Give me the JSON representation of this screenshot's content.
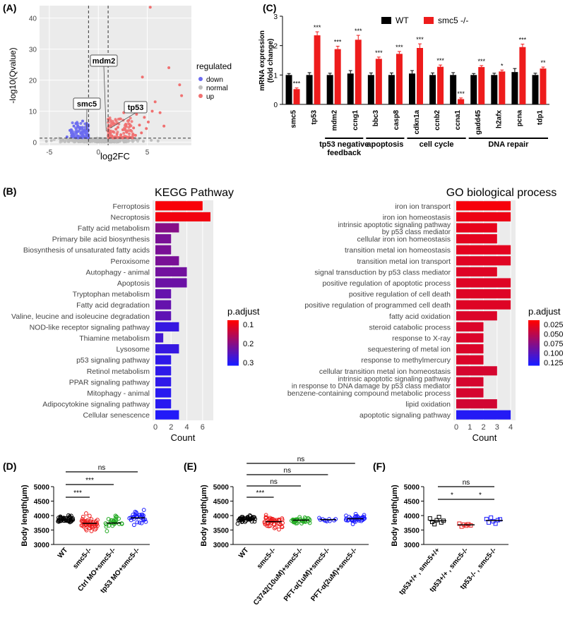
{
  "panels": {
    "A": "(A)",
    "B": "(B)",
    "C": "(C)",
    "D": "(D)",
    "E": "(E)",
    "F": "(F)"
  },
  "colors": {
    "up": "#f07070",
    "down": "#6b6bf0",
    "normal": "#bdbdbd",
    "wt": "#000000",
    "smc5": "#ee1c1c",
    "ptop": "#ff0000",
    "pbottom": "#1b1bff"
  },
  "chart_data": [
    {
      "id": "A",
      "type": "scatter",
      "xlabel": "log2FC",
      "ylabel": "-log10(Qvalue)",
      "xticks": [
        -5,
        0,
        5
      ],
      "yticks": [
        0,
        10,
        20,
        30,
        40
      ],
      "xlim": [
        -6,
        9.5
      ],
      "ylim": [
        -1,
        44
      ],
      "thresholds": {
        "x": [
          -1,
          1
        ],
        "y": 1.3
      },
      "legend": {
        "title": "regulated",
        "items": [
          "down",
          "normal",
          "up"
        ],
        "position": "right"
      },
      "labels": [
        {
          "name": "mdm2",
          "x": 0.8,
          "y": 3.5
        },
        {
          "name": "smc5",
          "x": -1.2,
          "y": 4
        },
        {
          "name": "tp53",
          "x": 1.2,
          "y": 4.5
        }
      ],
      "up_points": [
        [
          5.3,
          43.5
        ],
        [
          7.2,
          24
        ],
        [
          4.5,
          21
        ],
        [
          8.3,
          18.5
        ],
        [
          8.5,
          15
        ],
        [
          5.8,
          13
        ],
        [
          3.4,
          11
        ],
        [
          5.5,
          10
        ],
        [
          2.6,
          9.5
        ],
        [
          6.3,
          9.5
        ],
        [
          3.9,
          9
        ],
        [
          4.7,
          8
        ],
        [
          2.2,
          7.5
        ],
        [
          3.1,
          7
        ],
        [
          5.1,
          6.5
        ],
        [
          1.6,
          6
        ],
        [
          2.8,
          5.8
        ],
        [
          4.2,
          5.5
        ],
        [
          6.7,
          5.2
        ],
        [
          1.3,
          5
        ],
        [
          2.0,
          4.8
        ],
        [
          3.6,
          4.6
        ],
        [
          4.9,
          4.4
        ],
        [
          1.8,
          4.2
        ],
        [
          2.5,
          4
        ],
        [
          3.3,
          3.8
        ],
        [
          1.1,
          3.6
        ],
        [
          1.5,
          3.4
        ],
        [
          2.9,
          3.2
        ],
        [
          4.4,
          3
        ],
        [
          1.2,
          2.8
        ],
        [
          1.9,
          2.6
        ],
        [
          2.3,
          2.4
        ],
        [
          3.8,
          2.2
        ],
        [
          1.4,
          2
        ],
        [
          2.7,
          1.9
        ],
        [
          1.7,
          1.7
        ],
        [
          3.1,
          1.6
        ],
        [
          2.1,
          1.5
        ]
      ],
      "down_points": [
        [
          -1.6,
          6.8
        ],
        [
          -2.5,
          5.2
        ],
        [
          -1.2,
          5.8
        ],
        [
          -1.9,
          4.6
        ],
        [
          -1.1,
          4.2
        ],
        [
          -2.9,
          3.8
        ],
        [
          -1.5,
          3.4
        ],
        [
          -2.2,
          3.2
        ],
        [
          -1.3,
          3
        ],
        [
          -1.8,
          2.8
        ],
        [
          -2.6,
          2.6
        ],
        [
          -1.1,
          2.4
        ],
        [
          -1.6,
          2.2
        ],
        [
          -2.1,
          2
        ],
        [
          -1.4,
          1.8
        ],
        [
          -3.2,
          1.7
        ],
        [
          -1.9,
          1.6
        ],
        [
          -1.2,
          1.5
        ]
      ],
      "normal_points": [
        [
          -4.8,
          0.5
        ],
        [
          -3.6,
          0.8
        ],
        [
          -2.4,
          0.4
        ],
        [
          -1.2,
          0.9
        ],
        [
          -0.6,
          1.1
        ],
        [
          0.2,
          0.6
        ],
        [
          0.7,
          1.2
        ],
        [
          1.6,
          0.7
        ],
        [
          2.8,
          0.5
        ],
        [
          3.9,
          0.8
        ],
        [
          4.6,
          0.3
        ],
        [
          -3,
          0.2
        ],
        [
          -0.2,
          0.3
        ],
        [
          0.4,
          0.9
        ],
        [
          1.1,
          0.4
        ],
        [
          5.4,
          0.6
        ],
        [
          6.1,
          0.4
        ],
        [
          -5.3,
          0.3
        ],
        [
          2.2,
          1.0
        ],
        [
          -1.8,
          0.5
        ]
      ]
    },
    {
      "id": "C",
      "type": "bar",
      "ylabel": "mRNA expression\n(fold change)",
      "ylim": [
        0,
        3
      ],
      "yticks": [
        0,
        1,
        2,
        3
      ],
      "categories": [
        "smc5",
        "tp53",
        "mdm2",
        "ccng1",
        "bbc3",
        "casp8",
        "cdkn1a",
        "ccnb2",
        "ccna1",
        "gadd45",
        "h2afx",
        "pcna",
        "tdp1"
      ],
      "series": [
        {
          "name": "WT",
          "values": [
            1,
            1,
            1,
            1.05,
            1,
            1,
            1.05,
            1,
            1,
            1,
            1,
            1.1,
            1
          ],
          "err": [
            0.05,
            0.08,
            0.06,
            0.1,
            0.07,
            0.07,
            0.1,
            0.07,
            0.08,
            0.05,
            0.06,
            0.12,
            0.06
          ]
        },
        {
          "name": "smc5 -/-",
          "values": [
            0.52,
            2.35,
            1.88,
            2.2,
            1.55,
            1.72,
            1.92,
            1.28,
            0.18,
            1.27,
            1.12,
            1.95,
            1.22
          ],
          "err": [
            0.04,
            0.12,
            0.1,
            0.15,
            0.06,
            0.08,
            0.14,
            0.06,
            0.04,
            0.05,
            0.05,
            0.1,
            0.05
          ]
        }
      ],
      "significance": [
        "***",
        "***",
        "***",
        "***",
        "***",
        "***",
        "***",
        "***",
        "***",
        "***",
        "*",
        "***",
        "**"
      ],
      "groups": [
        {
          "label": "tp53 negative\nfeedback",
          "from": 2,
          "to": 3
        },
        {
          "label": "apoptosis",
          "from": 4,
          "to": 5
        },
        {
          "label": "cell cycle",
          "from": 6,
          "to": 8
        },
        {
          "label": "DNA repair",
          "from": 9,
          "to": 12
        }
      ],
      "legend": {
        "position": "top"
      }
    },
    {
      "id": "B-KEGG",
      "type": "bar",
      "title": "KEGG Pathway",
      "xlabel": "Count",
      "xlim": [
        0,
        7
      ],
      "xticks": [
        0,
        2,
        4,
        6
      ],
      "categories": [
        "Ferroptosis",
        "Necroptosis",
        "Fatty acid metabolism",
        "Primary bile acid biosynthesis",
        "Biosynthesis of unsaturated fatty acids",
        "Peroxisome",
        "Autophagy - animal",
        "Apoptosis",
        "Tryptophan metabolism",
        "Fatty acid degradation",
        "Valine, leucine and isoleucine degradation",
        "NOD-like receptor signaling pathway",
        "Thiamine metabolism",
        "Lysosome",
        "p53 signaling pathway",
        "Retinol metabolism",
        "PPAR signaling pathway",
        "Mitophagy - animal",
        "Adipocytokine signaling pathway",
        "Cellular senescence"
      ],
      "values": [
        6,
        7,
        3,
        2,
        2,
        3,
        4,
        4,
        2,
        2,
        2,
        3,
        1,
        3,
        2,
        2,
        2,
        2,
        2,
        3
      ],
      "p_adjust": [
        0.03,
        0.04,
        0.2,
        0.22,
        0.22,
        0.22,
        0.23,
        0.24,
        0.25,
        0.25,
        0.26,
        0.32,
        0.3,
        0.32,
        0.33,
        0.33,
        0.33,
        0.34,
        0.34,
        0.35
      ],
      "legend": {
        "title": "p.adjust",
        "ticks": [
          "0.1",
          "0.2",
          "0.3"
        ],
        "range": [
          0.02,
          0.36
        ]
      }
    },
    {
      "id": "B-GO",
      "type": "bar",
      "title": "GO biological process",
      "xlabel": "Count",
      "xlim": [
        0,
        4.15
      ],
      "xticks": [
        0,
        1,
        2,
        3,
        4
      ],
      "categories": [
        "iron ion transport",
        "iron ion homeostasis",
        "intrinsic apoptotic signaling pathway by p53 class mediator",
        "cellular iron ion homeostasis",
        "transition metal ion homeostasis",
        "transition metal ion transport",
        "signal transduction by p53 class mediator",
        "positive regulation of apoptotic process",
        "positive regulation of cell death",
        "positive regulation of programmed cell death",
        "fatty acid oxidation",
        "steroid catabolic process",
        "response to X-ray",
        "sequestering of metal ion",
        "response to methylmercury",
        "cellular transition metal ion homeostasis",
        "intrinsic apoptotic signaling pathway in response to DNA damage by p53 class mediator",
        "benzene-containing compound metabolic process",
        "lipid oxidation",
        "apoptotic signaling pathway"
      ],
      "values": [
        4,
        4,
        3,
        3,
        4,
        4,
        3,
        4,
        4,
        4,
        3,
        2,
        2,
        2,
        2,
        3,
        2,
        2,
        3,
        4
      ],
      "p_adjust": [
        0.02,
        0.025,
        0.028,
        0.03,
        0.03,
        0.032,
        0.033,
        0.033,
        0.033,
        0.033,
        0.035,
        0.035,
        0.035,
        0.035,
        0.035,
        0.038,
        0.038,
        0.038,
        0.04,
        0.135
      ],
      "legend": {
        "title": "p.adjust",
        "ticks": [
          "0.025",
          "0.050",
          "0.075",
          "0.100",
          "0.125"
        ],
        "range": [
          0.015,
          0.14
        ]
      }
    },
    {
      "id": "D",
      "type": "scatter",
      "ylabel": "Body length(μm)",
      "ylim": [
        3000,
        5000
      ],
      "yticks": [
        3000,
        3500,
        4000,
        4500,
        5000
      ],
      "categories": [
        "WT",
        "smc5-/-",
        "Ctrl MO+smc5-/-",
        "tp53 MO+smc5-/-"
      ],
      "means": [
        3870,
        3730,
        3740,
        3920
      ],
      "spread": [
        90,
        170,
        180,
        170
      ],
      "n": [
        45,
        45,
        28,
        32
      ],
      "comparisons": [
        {
          "from": 0,
          "to": 1,
          "label": "***"
        },
        {
          "from": 0,
          "to": 2,
          "label": "***"
        },
        {
          "from": 0,
          "to": 3,
          "label": "ns"
        }
      ]
    },
    {
      "id": "E",
      "type": "scatter",
      "ylabel": "Body length(μm)",
      "ylim": [
        3000,
        5000
      ],
      "yticks": [
        3000,
        3500,
        4000,
        4500,
        5000
      ],
      "categories": [
        "WT",
        "smc5-/-",
        "C3742(10uM)+smc5-/-",
        "PFT-α(1uM)+smc5-/-",
        "PFT-α(2uM)+smc5-/-"
      ],
      "means": [
        3870,
        3790,
        3840,
        3860,
        3890
      ],
      "spread": [
        90,
        160,
        90,
        60,
        110
      ],
      "n": [
        40,
        45,
        35,
        10,
        40
      ],
      "comparisons": [
        {
          "from": 0,
          "to": 1,
          "label": "***"
        },
        {
          "from": 0,
          "to": 2,
          "label": "ns"
        },
        {
          "from": 0,
          "to": 3,
          "label": "ns"
        },
        {
          "from": 0,
          "to": 4,
          "label": "ns"
        }
      ]
    },
    {
      "id": "F",
      "type": "scatter",
      "ylabel": "Body length(μm)",
      "ylim": [
        3000,
        5000
      ],
      "yticks": [
        3000,
        3500,
        4000,
        4500,
        5000
      ],
      "categories": [
        "tp53+/+ , smc5+/+",
        "tp53+/+ , smc5-/-",
        "tp53-/- , smc5-/-"
      ],
      "means": [
        3820,
        3680,
        3830
      ],
      "spread": [
        90,
        60,
        80
      ],
      "points": [
        [
          3900,
          3780,
          3700,
          3840,
          3950,
          3760,
          3820
        ],
        [
          3720,
          3620,
          3690,
          3650,
          3700,
          3660
        ],
        [
          3880,
          3760,
          3930,
          3800,
          3720,
          3840,
          3870
        ]
      ],
      "comparisons": [
        {
          "from": 0,
          "to": 1,
          "label": "*"
        },
        {
          "from": 1,
          "to": 2,
          "label": "*"
        },
        {
          "from": 0,
          "to": 2,
          "label": "ns"
        }
      ]
    }
  ]
}
